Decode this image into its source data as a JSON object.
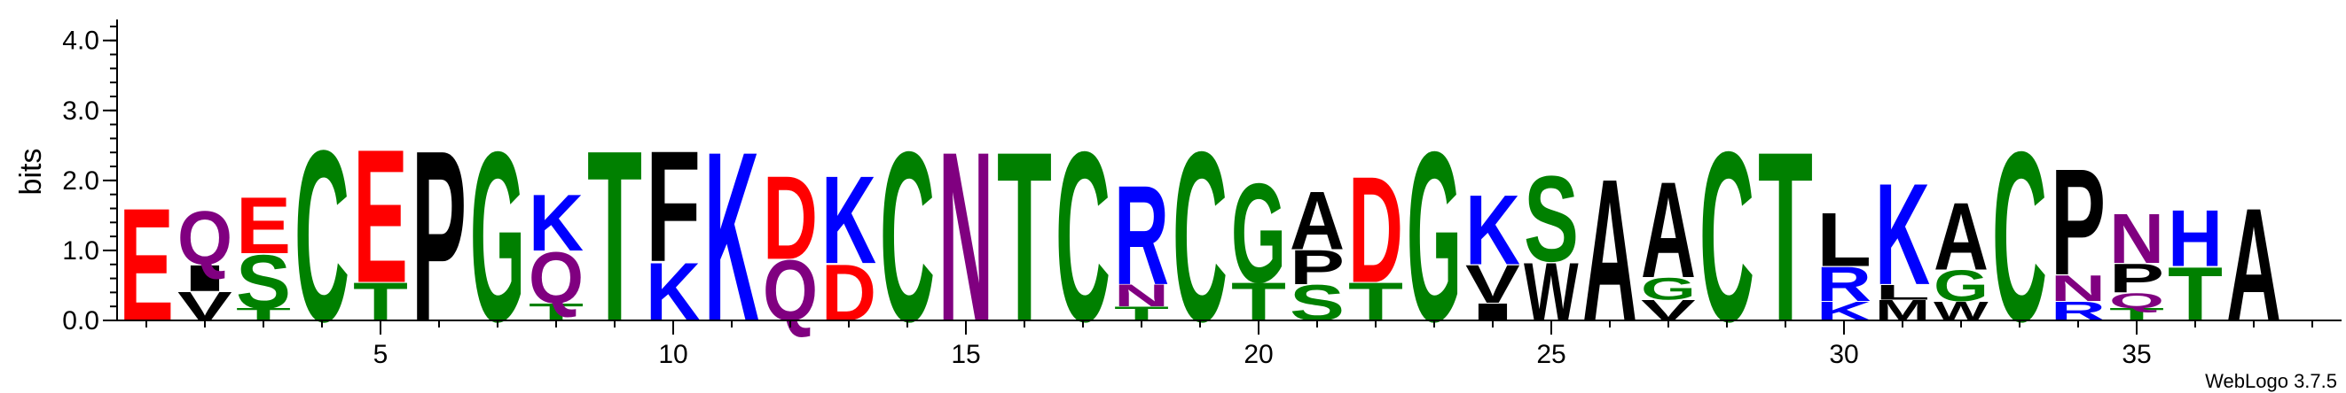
{
  "chart_data": {
    "type": "sequence-logo",
    "ylabel": "bits",
    "ylim": [
      0,
      4.3
    ],
    "y_ticks": [
      "0.0",
      "1.0",
      "2.0",
      "3.0",
      "4.0"
    ],
    "y_tick_values": [
      0,
      1,
      2,
      3,
      4
    ],
    "x_ticks": [
      "5",
      "10",
      "15",
      "20",
      "25",
      "30",
      "35"
    ],
    "x_tick_values": [
      5,
      10,
      15,
      20,
      25,
      30,
      35
    ],
    "x_range": [
      0.5,
      38.5
    ],
    "footer": "WebLogo 3.7.5",
    "colors": {
      "G": "#008000",
      "S": "#008000",
      "T": "#008000",
      "C": "#008000",
      "N": "#800080",
      "Q": "#800080",
      "K": "#0000ff",
      "R": "#0000ff",
      "H": "#0000ff",
      "D": "#ff0000",
      "E": "#ff0000",
      "P": "#000000",
      "A": "#000000",
      "W": "#000000",
      "F": "#000000",
      "L": "#000000",
      "V": "#000000",
      "I": "#000000",
      "M": "#000000",
      "Y": "#000000"
    },
    "positions": [
      {
        "pos": 1,
        "letters": [
          {
            "l": "E",
            "h": 1.65
          }
        ]
      },
      {
        "pos": 2,
        "letters": [
          {
            "l": "V",
            "h": 0.42
          },
          {
            "l": "I",
            "h": 0.38
          },
          {
            "l": "Q",
            "h": 0.78
          }
        ]
      },
      {
        "pos": 3,
        "letters": [
          {
            "l": "T",
            "h": 0.18
          },
          {
            "l": "S",
            "h": 0.78
          },
          {
            "l": "E",
            "h": 0.82
          }
        ]
      },
      {
        "pos": 4,
        "letters": [
          {
            "l": "C",
            "h": 2.5
          }
        ]
      },
      {
        "pos": 5,
        "letters": [
          {
            "l": "T",
            "h": 0.55
          },
          {
            "l": "E",
            "h": 1.95
          }
        ]
      },
      {
        "pos": 6,
        "letters": [
          {
            "l": "P",
            "h": 2.5
          }
        ]
      },
      {
        "pos": 7,
        "letters": [
          {
            "l": "G",
            "h": 2.48
          }
        ]
      },
      {
        "pos": 8,
        "letters": [
          {
            "l": "T",
            "h": 0.25
          },
          {
            "l": "Q",
            "h": 0.75
          },
          {
            "l": "K",
            "h": 0.82
          }
        ]
      },
      {
        "pos": 9,
        "letters": [
          {
            "l": "T",
            "h": 2.5
          }
        ]
      },
      {
        "pos": 10,
        "letters": [
          {
            "l": "K",
            "h": 0.85
          },
          {
            "l": "F",
            "h": 1.62
          }
        ]
      },
      {
        "pos": 11,
        "letters": [
          {
            "l": "K",
            "h": 2.48
          }
        ]
      },
      {
        "pos": 12,
        "letters": [
          {
            "l": "Q",
            "h": 0.88
          },
          {
            "l": "D",
            "h": 1.22
          }
        ]
      },
      {
        "pos": 13,
        "letters": [
          {
            "l": "D",
            "h": 0.82
          },
          {
            "l": "K",
            "h": 1.28
          }
        ]
      },
      {
        "pos": 14,
        "letters": [
          {
            "l": "C",
            "h": 2.48
          }
        ]
      },
      {
        "pos": 15,
        "letters": [
          {
            "l": "N",
            "h": 2.48
          }
        ]
      },
      {
        "pos": 16,
        "letters": [
          {
            "l": "T",
            "h": 2.48
          }
        ]
      },
      {
        "pos": 17,
        "letters": [
          {
            "l": "C",
            "h": 2.48
          }
        ]
      },
      {
        "pos": 18,
        "letters": [
          {
            "l": "T",
            "h": 0.2
          },
          {
            "l": "N",
            "h": 0.32
          },
          {
            "l": "R",
            "h": 1.45
          }
        ]
      },
      {
        "pos": 19,
        "letters": [
          {
            "l": "C",
            "h": 2.48
          }
        ]
      },
      {
        "pos": 20,
        "letters": [
          {
            "l": "T",
            "h": 0.55
          },
          {
            "l": "G",
            "h": 1.45
          }
        ]
      },
      {
        "pos": 21,
        "letters": [
          {
            "l": "S",
            "h": 0.52
          },
          {
            "l": "P",
            "h": 0.5
          },
          {
            "l": "A",
            "h": 0.85
          }
        ]
      },
      {
        "pos": 22,
        "letters": [
          {
            "l": "T",
            "h": 0.55
          },
          {
            "l": "D",
            "h": 1.55
          }
        ]
      },
      {
        "pos": 23,
        "letters": [
          {
            "l": "G",
            "h": 2.48
          }
        ]
      },
      {
        "pos": 24,
        "letters": [
          {
            "l": "I",
            "h": 0.25
          },
          {
            "l": "V",
            "h": 0.55
          },
          {
            "l": "K",
            "h": 1.02
          }
        ]
      },
      {
        "pos": 25,
        "letters": [
          {
            "l": "W",
            "h": 0.85
          },
          {
            "l": "S",
            "h": 1.25
          }
        ]
      },
      {
        "pos": 26,
        "letters": [
          {
            "l": "A",
            "h": 2.08
          }
        ]
      },
      {
        "pos": 27,
        "letters": [
          {
            "l": "V",
            "h": 0.3
          },
          {
            "l": "G",
            "h": 0.32
          },
          {
            "l": "A",
            "h": 1.4
          }
        ]
      },
      {
        "pos": 28,
        "letters": [
          {
            "l": "C",
            "h": 2.48
          }
        ]
      },
      {
        "pos": 29,
        "letters": [
          {
            "l": "T",
            "h": 2.48
          }
        ]
      },
      {
        "pos": 30,
        "letters": [
          {
            "l": "K",
            "h": 0.28
          },
          {
            "l": "R",
            "h": 0.5
          },
          {
            "l": "L",
            "h": 0.78
          }
        ]
      },
      {
        "pos": 31,
        "letters": [
          {
            "l": "M",
            "h": 0.3
          },
          {
            "l": "L",
            "h": 0.22
          },
          {
            "l": "K",
            "h": 1.48
          }
        ]
      },
      {
        "pos": 32,
        "letters": [
          {
            "l": "W",
            "h": 0.28
          },
          {
            "l": "G",
            "h": 0.45
          },
          {
            "l": "A",
            "h": 0.98
          }
        ]
      },
      {
        "pos": 33,
        "letters": [
          {
            "l": "C",
            "h": 2.48
          }
        ]
      },
      {
        "pos": 34,
        "letters": [
          {
            "l": "R",
            "h": 0.28
          },
          {
            "l": "N",
            "h": 0.38
          },
          {
            "l": "P",
            "h": 1.55
          }
        ]
      },
      {
        "pos": 35,
        "letters": [
          {
            "l": "T",
            "h": 0.18
          },
          {
            "l": "Q",
            "h": 0.22
          },
          {
            "l": "P",
            "h": 0.42
          },
          {
            "l": "N",
            "h": 0.72
          }
        ]
      },
      {
        "pos": 36,
        "letters": [
          {
            "l": "T",
            "h": 0.78
          },
          {
            "l": "H",
            "h": 0.82
          }
        ]
      },
      {
        "pos": 37,
        "letters": [
          {
            "l": "A",
            "h": 1.65
          }
        ]
      }
    ]
  }
}
